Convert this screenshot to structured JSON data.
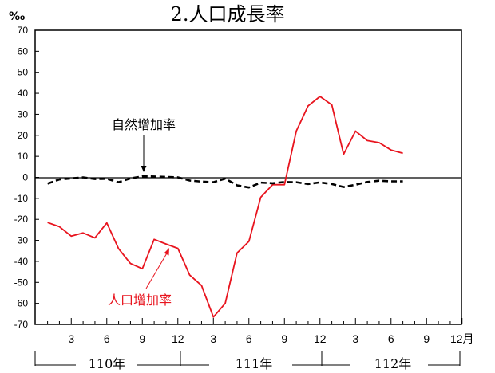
{
  "chart_data": {
    "type": "line",
    "title": "2.人口成長率",
    "unit_label": "‰",
    "ylim": [
      -70,
      70
    ],
    "y_ticks": [
      "70",
      "60",
      "50",
      "40",
      "30",
      "20",
      "10",
      "0",
      "-10",
      "-20",
      "-30",
      "-40",
      "-50",
      "-60",
      "-70"
    ],
    "x_month_ticks": [
      "3",
      "6",
      "9",
      "12",
      "3",
      "6",
      "9",
      "12",
      "3",
      "6",
      "9",
      "12月"
    ],
    "year_labels": [
      "110年",
      "111年",
      "112年"
    ],
    "series": [
      {
        "name": "人口增加率",
        "color": "#e8141e",
        "style": "solid",
        "values": [
          -21.5,
          -23.5,
          -28,
          -26.5,
          -28.8,
          -21.7,
          -34,
          -41,
          -43.5,
          -29.5,
          -31.7,
          -33.8,
          -46.5,
          -51.5,
          -66.5,
          -60,
          -36,
          -30.5,
          -9.5,
          -3.5,
          -3.5,
          22,
          34,
          38.5,
          34.5,
          11,
          22,
          17.5,
          16.5,
          13,
          11.5
        ]
      },
      {
        "name": "自然增加率",
        "color": "#000000",
        "style": "dashed",
        "values": [
          -3,
          -1,
          -0.5,
          0,
          -0.8,
          -0.7,
          -2.3,
          -0.5,
          0.5,
          0.4,
          0.2,
          0,
          -1.5,
          -2,
          -2.3,
          -0.6,
          -3.8,
          -4.8,
          -2.5,
          -2.8,
          -2.2,
          -2.3,
          -3.2,
          -2.4,
          -3.2,
          -4.6,
          -3.5,
          -2.2,
          -1.6,
          -1.9,
          -1.9
        ]
      }
    ],
    "annotations": [
      {
        "text": "自然增加率",
        "series": "自然增加率",
        "color": "#000000"
      },
      {
        "text": "人口增加率",
        "series": "人口增加率",
        "color": "#e8141e"
      }
    ],
    "grid": false
  }
}
